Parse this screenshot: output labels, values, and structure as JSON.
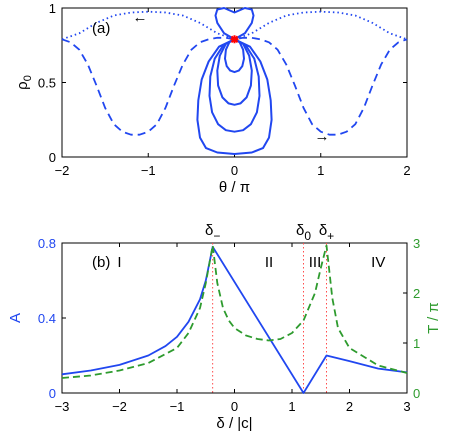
{
  "chart_data": [
    {
      "type": "line",
      "panel_label": "(a)",
      "xlabel": "θ / π",
      "ylabel": "ρ",
      "ylabel_subscript": "0",
      "xlim": [
        -2,
        2
      ],
      "ylim": [
        0,
        1
      ],
      "xticks": [
        "−2",
        "−1",
        "0",
        "1",
        "2"
      ],
      "yticks": [
        "0",
        "0.5",
        "1"
      ],
      "arrows": [
        "←",
        "→"
      ],
      "marker": {
        "x": 0,
        "y": 0.79,
        "color": "#ff0000"
      },
      "colors": {
        "curves": "#2147f0"
      },
      "series": [
        {
          "style": "dotted",
          "x": [
            -2,
            -1.8,
            -1.6,
            -1.4,
            -1.2,
            -1.0,
            -0.8,
            -0.6,
            -0.4,
            -0.2,
            0,
            0.2,
            0.4,
            0.6,
            0.8,
            1.0,
            1.2,
            1.4,
            1.6,
            1.8,
            2
          ],
          "y": [
            0.79,
            0.83,
            0.9,
            0.95,
            0.97,
            0.975,
            0.97,
            0.95,
            0.9,
            0.83,
            0.79,
            0.83,
            0.9,
            0.95,
            0.97,
            0.975,
            0.97,
            0.95,
            0.9,
            0.83,
            0.79
          ]
        },
        {
          "style": "dashed",
          "x": [
            -2,
            -1.9,
            -1.8,
            -1.7,
            -1.6,
            -1.5,
            -1.4,
            -1.3,
            -1.2,
            -1.1,
            -1.0,
            -0.9,
            -0.8,
            -0.7,
            -0.6,
            -0.5,
            -0.4,
            -0.3,
            -0.2,
            -0.1,
            0,
            0.1,
            0.2,
            0.3,
            0.4,
            0.5,
            0.6,
            0.7,
            0.8,
            0.9,
            1.0,
            1.1,
            1.2,
            1.3,
            1.4,
            1.5,
            1.6,
            1.7,
            1.8,
            1.9,
            2
          ],
          "y": [
            0.79,
            0.77,
            0.72,
            0.62,
            0.48,
            0.33,
            0.22,
            0.17,
            0.15,
            0.15,
            0.17,
            0.22,
            0.33,
            0.48,
            0.62,
            0.72,
            0.77,
            0.79,
            0.8,
            0.8,
            0.79,
            0.8,
            0.8,
            0.79,
            0.77,
            0.72,
            0.62,
            0.48,
            0.33,
            0.22,
            0.17,
            0.15,
            0.15,
            0.17,
            0.22,
            0.33,
            0.48,
            0.62,
            0.72,
            0.77,
            0.79
          ]
        },
        {
          "style": "solid",
          "name_hidden": "orbit-inner",
          "x": [
            0,
            0.06,
            0.1,
            0.11,
            0.09,
            0.05,
            0,
            -0.05,
            -0.09,
            -0.11,
            -0.1,
            -0.06,
            0
          ],
          "y": [
            0.79,
            0.77,
            0.72,
            0.66,
            0.61,
            0.58,
            0.57,
            0.58,
            0.61,
            0.66,
            0.72,
            0.77,
            0.79
          ]
        },
        {
          "style": "solid",
          "x": [
            0,
            0.1,
            0.17,
            0.2,
            0.19,
            0.14,
            0.07,
            0,
            -0.07,
            -0.14,
            -0.19,
            -0.2,
            -0.17,
            -0.1,
            0
          ],
          "y": [
            0.79,
            0.76,
            0.68,
            0.58,
            0.48,
            0.4,
            0.36,
            0.35,
            0.36,
            0.4,
            0.48,
            0.58,
            0.68,
            0.76,
            0.79
          ]
        },
        {
          "style": "solid",
          "x": [
            0,
            0.13,
            0.23,
            0.28,
            0.29,
            0.26,
            0.19,
            0.1,
            0,
            -0.1,
            -0.19,
            -0.26,
            -0.29,
            -0.28,
            -0.23,
            -0.13,
            0
          ],
          "y": [
            0.79,
            0.75,
            0.66,
            0.54,
            0.41,
            0.3,
            0.22,
            0.18,
            0.17,
            0.18,
            0.22,
            0.3,
            0.41,
            0.54,
            0.66,
            0.75,
            0.79
          ]
        },
        {
          "style": "solid",
          "x": [
            0,
            0.18,
            0.3,
            0.38,
            0.42,
            0.43,
            0.4,
            0.33,
            0.2,
            0,
            -0.2,
            -0.33,
            -0.4,
            -0.43,
            -0.42,
            -0.38,
            -0.3,
            -0.18,
            0
          ],
          "y": [
            0.79,
            0.74,
            0.64,
            0.52,
            0.38,
            0.25,
            0.13,
            0.06,
            0.03,
            0.02,
            0.03,
            0.06,
            0.13,
            0.25,
            0.38,
            0.52,
            0.64,
            0.74,
            0.79
          ]
        },
        {
          "style": "solid",
          "x": [
            0,
            0.12,
            0.2,
            0.22,
            0.2,
            0.12,
            0,
            -0.12,
            -0.2,
            -0.22,
            -0.2,
            -0.12,
            0
          ],
          "y": [
            0.79,
            0.83,
            0.9,
            0.95,
            0.99,
            1.0,
            0.97,
            1.0,
            0.99,
            0.95,
            0.9,
            0.83,
            0.79
          ]
        }
      ]
    },
    {
      "type": "line",
      "panel_label": "(b)",
      "xlabel": "δ / |c|",
      "ylabel_left": "A",
      "ylabel_right": "T / π",
      "xlim": [
        -3,
        3
      ],
      "ylim_left": [
        0,
        0.8
      ],
      "ylim_right": [
        0,
        3
      ],
      "xticks": [
        "−3",
        "−2",
        "−1",
        "0",
        "1",
        "2",
        "3"
      ],
      "yticks_left": [
        "0",
        "0.4",
        "0.8"
      ],
      "yticks_right": [
        "0",
        "1",
        "2",
        "3"
      ],
      "regions": [
        "I",
        "II",
        "III",
        "IV"
      ],
      "top_labels": [
        {
          "base": "δ",
          "sub": "−",
          "x": -0.38
        },
        {
          "base": "δ",
          "sub": "0",
          "x": 1.2
        },
        {
          "base": "δ",
          "sub": "+",
          "x": 1.6
        }
      ],
      "vlines_x": [
        -0.38,
        1.2,
        1.6
      ],
      "colors": {
        "A": "#2147f0",
        "T": "#2e9b2e",
        "vlines": "#ff4d4d"
      },
      "series": [
        {
          "name": "A",
          "axis": "left",
          "style": "solid",
          "x": [
            -3,
            -2.5,
            -2.0,
            -1.5,
            -1.2,
            -1.0,
            -0.8,
            -0.6,
            -0.5,
            -0.38,
            1.2,
            1.6,
            2.0,
            2.5,
            3.0
          ],
          "y": [
            0.1,
            0.12,
            0.15,
            0.2,
            0.25,
            0.3,
            0.38,
            0.5,
            0.6,
            0.78,
            0.0,
            0.2,
            0.17,
            0.13,
            0.11
          ]
        },
        {
          "name": "T",
          "axis": "right",
          "style": "dashed",
          "x": [
            -3,
            -2.5,
            -2.0,
            -1.5,
            -1.0,
            -0.8,
            -0.6,
            -0.5,
            -0.38,
            -0.3,
            -0.2,
            -0.1,
            0,
            0.2,
            0.4,
            0.6,
            0.8,
            1.0,
            1.2,
            1.4,
            1.5,
            1.6,
            1.7,
            1.8,
            2.0,
            2.5,
            3.0
          ],
          "y": [
            0.3,
            0.35,
            0.45,
            0.6,
            0.9,
            1.2,
            1.7,
            2.2,
            2.95,
            2.2,
            1.7,
            1.45,
            1.3,
            1.15,
            1.08,
            1.05,
            1.08,
            1.2,
            1.45,
            2.0,
            2.5,
            2.95,
            1.9,
            1.3,
            0.9,
            0.55,
            0.4
          ]
        }
      ]
    }
  ]
}
